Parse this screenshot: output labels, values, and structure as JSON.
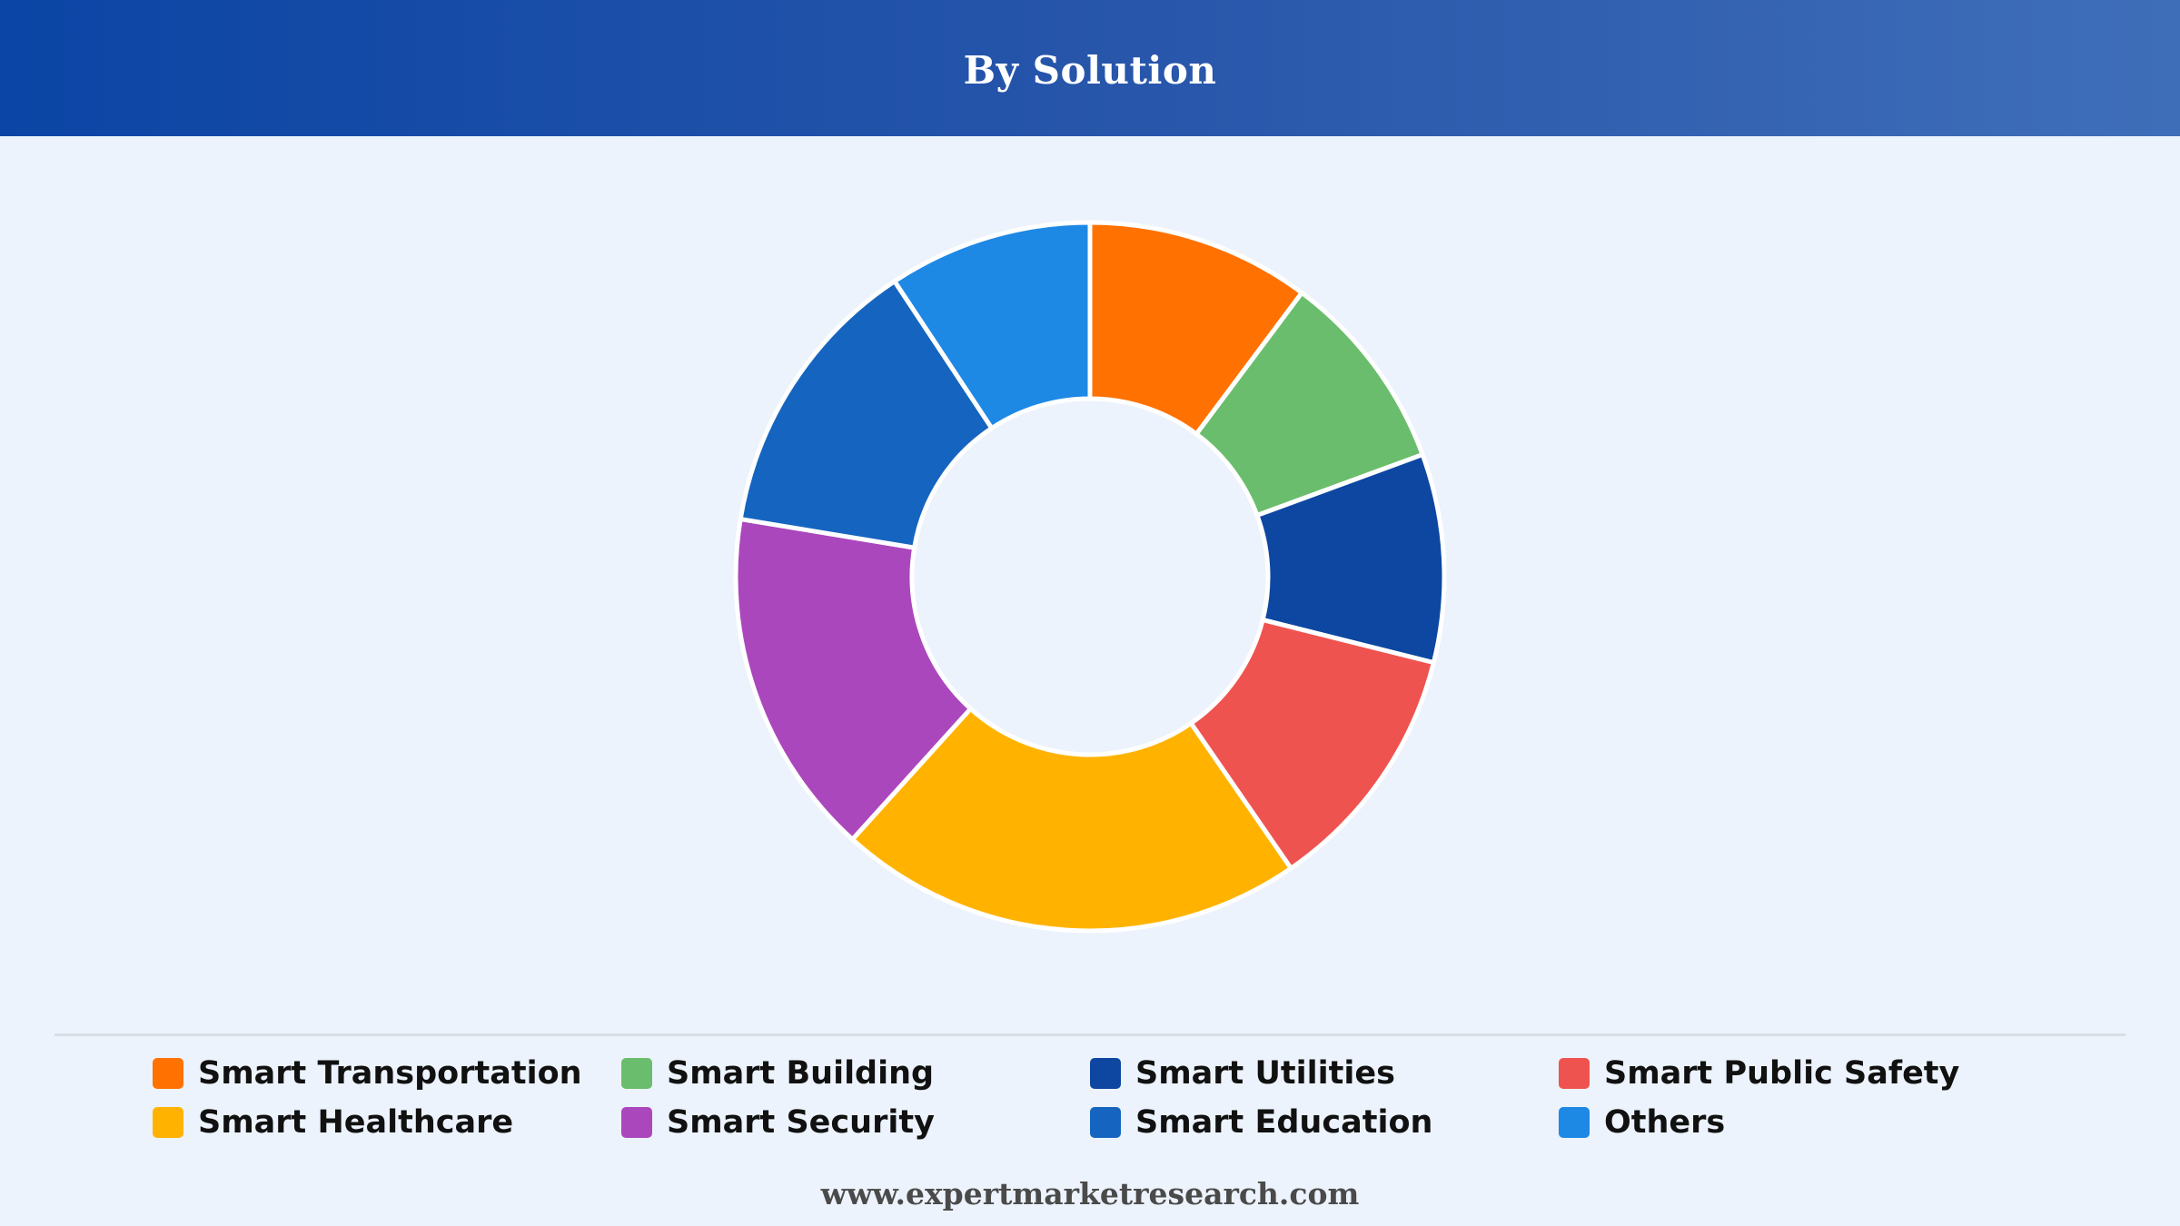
{
  "header": {
    "title": "By Solution"
  },
  "footer": {
    "website": "www.expertmarketresearch.com"
  },
  "chart_data": {
    "type": "pie",
    "title": "By Solution",
    "donut": true,
    "legend_position": "bottom",
    "categories": [
      "Smart Transportation",
      "Smart Building",
      "Smart Utilities",
      "Smart Public Safety",
      "Smart Healthcare",
      "Smart Security",
      "Smart Education",
      "Others"
    ],
    "values": [
      10.2,
      9.2,
      9.5,
      11.5,
      21.3,
      15.9,
      13.1,
      9.3
    ],
    "colors": [
      "#ff7100",
      "#6abd6c",
      "#0d47a1",
      "#ef5350",
      "#ffb300",
      "#ab47bc",
      "#1565c0",
      "#1e88e5"
    ]
  }
}
